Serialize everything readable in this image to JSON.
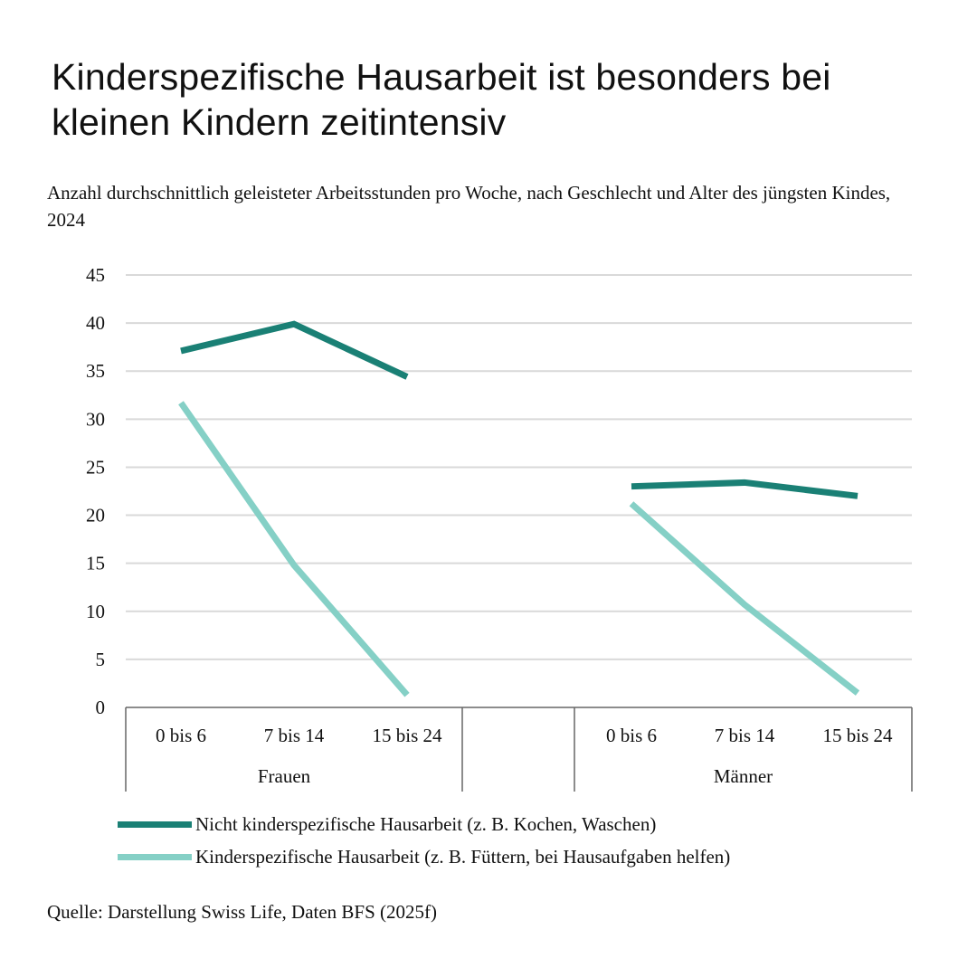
{
  "header": {
    "title": "Kinderspezifische Hausarbeit ist besonders bei kleinen Kindern zeitintensiv",
    "subtitle": "Anzahl durchschnittlich geleisteter Arbeitsstunden pro Woche, nach Geschlecht und Alter des jüngsten Kindes, 2024"
  },
  "footer": {
    "source": "Quelle: Darstellung Swiss Life, Daten BFS (2025f)"
  },
  "colors": {
    "dark_teal": "#1a8075",
    "light_teal": "#85d0c6",
    "grid": "#d9d9d9",
    "axis": "#666666"
  },
  "chart_data": {
    "type": "line",
    "ylim": [
      0,
      45
    ],
    "yticks": [
      0,
      5,
      10,
      15,
      20,
      25,
      30,
      35,
      40,
      45
    ],
    "grid": true,
    "legend_position": "bottom",
    "groups": [
      {
        "label": "Frauen",
        "categories": [
          "0 bis 6",
          "7 bis 14",
          "15 bis 24"
        ]
      },
      {
        "label": "Männer",
        "categories": [
          "0 bis 6",
          "7 bis 14",
          "15 bis 24"
        ]
      }
    ],
    "series": [
      {
        "name": "Nicht kinderspezifische Hausarbeit (z. B. Kochen, Waschen)",
        "color": "#1a8075",
        "values": [
          [
            37.1,
            39.9,
            34.4
          ],
          [
            23.0,
            23.4,
            22.0
          ]
        ]
      },
      {
        "name": "Kinderspezifische Hausarbeit (z. B. Füttern, bei Hausaufgaben helfen)",
        "color": "#85d0c6",
        "values": [
          [
            31.7,
            14.8,
            1.3
          ],
          [
            21.2,
            10.7,
            1.5
          ]
        ]
      }
    ]
  }
}
